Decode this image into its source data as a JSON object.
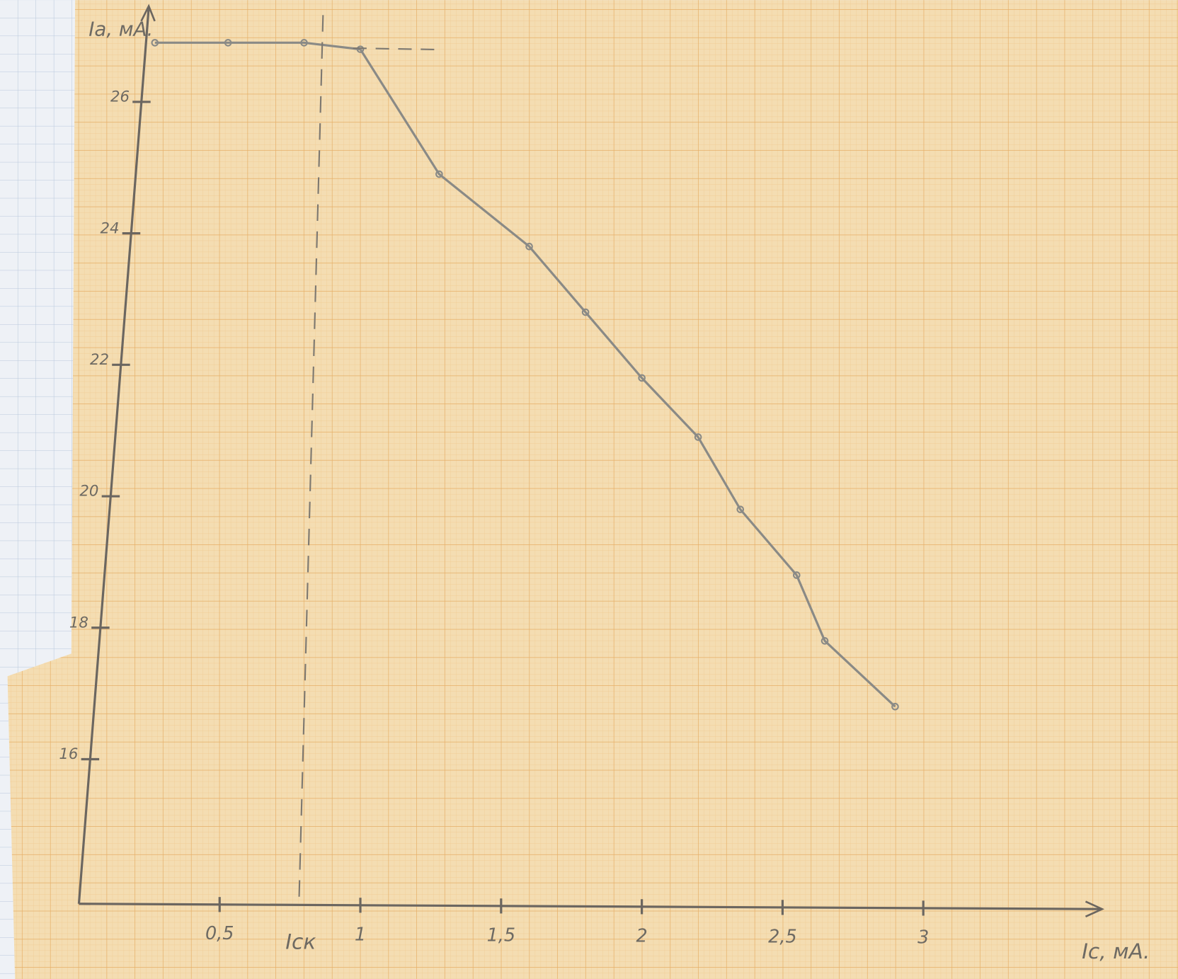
{
  "chart_data": {
    "type": "line",
    "y_label": "Iа, мА.",
    "x_label": "Iс, мА.",
    "annotation": "Iск",
    "x": [
      0.27,
      0.53,
      0.8,
      1.0,
      1.28,
      1.6,
      1.8,
      2.0,
      2.2,
      2.35,
      2.55,
      2.65,
      2.9
    ],
    "series": [
      {
        "color": "#8a8a86",
        "values": [
          26.9,
          26.9,
          26.9,
          26.8,
          24.9,
          23.8,
          22.8,
          21.8,
          20.9,
          19.8,
          18.8,
          17.8,
          16.8
        ]
      }
    ],
    "xlim": [
      0,
      3.63
    ],
    "ylim": [
      13.8,
      27.4
    ],
    "xticks": [
      {
        "value": 0.5,
        "label": "0,5"
      },
      1,
      {
        "value": 1.5,
        "label": "1,5"
      },
      2,
      {
        "value": 2.5,
        "label": "2,5"
      },
      3
    ],
    "yticks": [
      16,
      18,
      20,
      22,
      24,
      26
    ]
  }
}
